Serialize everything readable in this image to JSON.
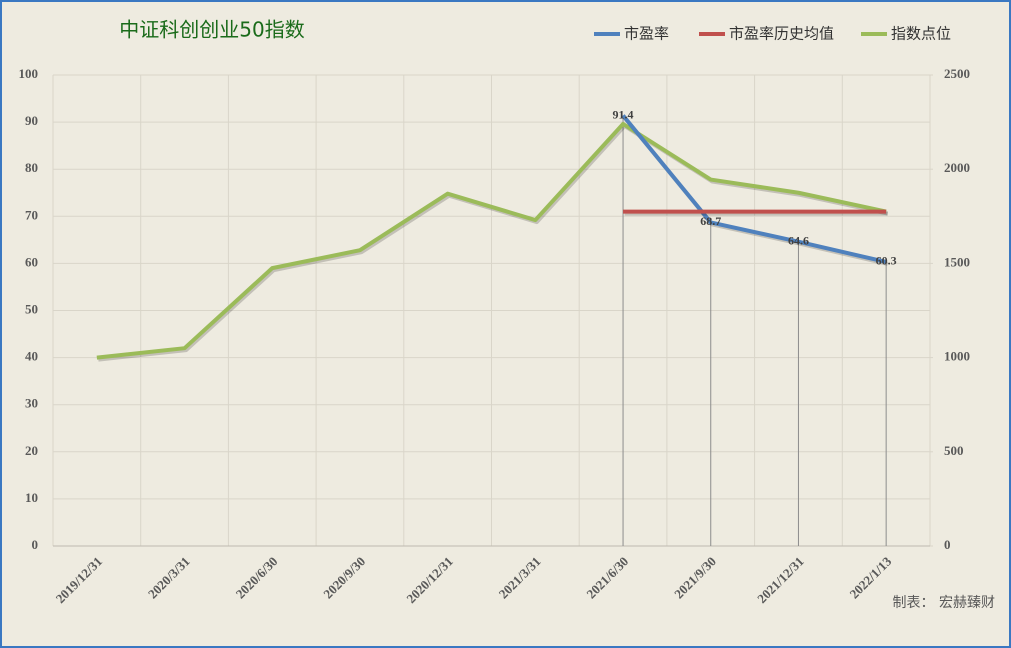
{
  "chart_data": {
    "type": "line",
    "title": "中证科创创业50指数",
    "annotation": "制表： 宏赫臻财",
    "categories": [
      "2019/12/31",
      "2020/3/31",
      "2020/6/30",
      "2020/9/30",
      "2020/12/31",
      "2021/3/31",
      "2021/6/30",
      "2021/9/30",
      "2021/12/31",
      "2022/1/13"
    ],
    "series": [
      {
        "name": "市盈率",
        "color": "#4f81bd",
        "values": [
          null,
          null,
          null,
          null,
          null,
          null,
          91.4,
          68.7,
          64.6,
          60.3
        ],
        "data_labels": true
      },
      {
        "name": "市盈率历史均值",
        "color": "#c0504d",
        "values": [
          null,
          null,
          null,
          null,
          null,
          null,
          71,
          71,
          71,
          71
        ]
      },
      {
        "name": "指数点位",
        "color": "#9bbb59",
        "axis": "y2",
        "values": [
          1000,
          1050,
          1475,
          1570,
          1870,
          1730,
          2240,
          1945,
          1875,
          1775
        ]
      }
    ],
    "ylim": [
      0,
      100
    ],
    "yticks": [
      0,
      10,
      20,
      30,
      40,
      50,
      60,
      70,
      80,
      90,
      100
    ],
    "y2lim": [
      0,
      2500
    ],
    "y2ticks": [
      0,
      500,
      1000,
      1500,
      2000,
      2500
    ],
    "grid": true,
    "legend": "top-right"
  }
}
